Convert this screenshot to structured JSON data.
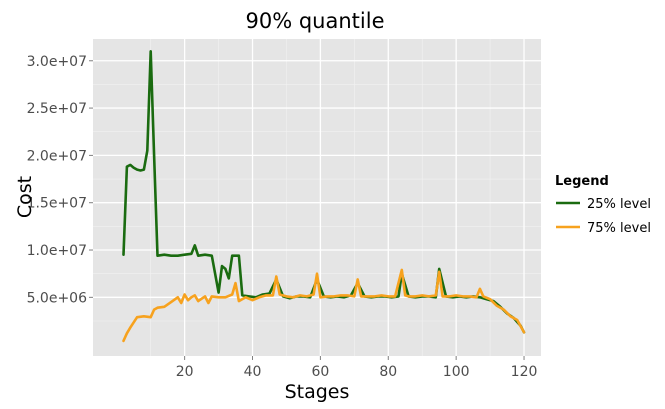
{
  "chart_data": {
    "type": "line",
    "title": "90% quantile",
    "xlabel": "Stages",
    "ylabel": "Cost",
    "xlim": [
      -7,
      125
    ],
    "ylim": [
      -1200000,
      32300000
    ],
    "xticks": [
      20,
      40,
      60,
      80,
      100,
      120
    ],
    "xtick_labels": [
      "20",
      "40",
      "60",
      "80",
      "100",
      "120"
    ],
    "yticks": [
      5000000,
      10000000,
      15000000,
      20000000,
      25000000,
      30000000
    ],
    "ytick_labels": [
      "5.0e+06",
      "1.0e+07",
      "1.5e+07",
      "2.0e+07",
      "2.5e+07",
      "3.0e+07"
    ],
    "grid": true,
    "legend_title": "Legend",
    "legend_position": "right",
    "series": [
      {
        "name": "25% level",
        "color": "#1a6b10",
        "x": [
          2,
          3,
          4,
          5,
          6,
          7,
          8,
          9,
          10,
          11,
          12,
          14,
          16,
          18,
          20,
          22,
          23,
          24,
          26,
          28,
          30,
          31,
          32,
          33,
          34,
          36,
          37,
          39,
          41,
          43,
          45,
          47,
          49,
          51,
          53,
          55,
          57,
          59,
          61,
          63,
          65,
          67,
          69,
          71,
          73,
          75,
          77,
          79,
          81,
          83,
          84,
          86,
          88,
          90,
          92,
          94,
          95,
          97,
          99,
          101,
          103,
          105,
          107,
          109,
          111,
          113,
          115,
          117,
          119,
          120
        ],
        "values": [
          9500000,
          18800000,
          19000000,
          18700000,
          18500000,
          18400000,
          18500000,
          20500000,
          31000000,
          20000000,
          9400000,
          9500000,
          9400000,
          9400000,
          9500000,
          9600000,
          10500000,
          9400000,
          9500000,
          9400000,
          5500000,
          8300000,
          8000000,
          7000000,
          9400000,
          9400000,
          5200000,
          5100000,
          5000000,
          5300000,
          5400000,
          6900000,
          5100000,
          4900000,
          5100000,
          5100000,
          5000000,
          6900000,
          5100000,
          5000000,
          5100000,
          5000000,
          5200000,
          6500000,
          5100000,
          5000000,
          5100000,
          5100000,
          5000000,
          5100000,
          7500000,
          5100000,
          5000000,
          5100000,
          5100000,
          5000000,
          8000000,
          5100000,
          5000000,
          5100000,
          5000000,
          5100000,
          5000000,
          4800000,
          4600000,
          4000000,
          3300000,
          2800000,
          2000000,
          1300000
        ]
      },
      {
        "name": "75% level",
        "color": "#f7a21e",
        "x": [
          2,
          3,
          4,
          6,
          8,
          10,
          11,
          12,
          14,
          16,
          18,
          19,
          20,
          21,
          22,
          23,
          24,
          26,
          27,
          28,
          30,
          32,
          34,
          35,
          36,
          38,
          40,
          42,
          44,
          46,
          47,
          48,
          50,
          52,
          54,
          56,
          58,
          59,
          60,
          62,
          64,
          66,
          68,
          70,
          71,
          72,
          74,
          76,
          78,
          80,
          82,
          84,
          85,
          86,
          88,
          90,
          92,
          94,
          95,
          96,
          98,
          100,
          102,
          104,
          106,
          107,
          108,
          110,
          112,
          114,
          116,
          118,
          120
        ],
        "values": [
          400000,
          1200000,
          1800000,
          2900000,
          3000000,
          2900000,
          3700000,
          3900000,
          4000000,
          4500000,
          5000000,
          4400000,
          5300000,
          4700000,
          5000000,
          5200000,
          4600000,
          5100000,
          4400000,
          5100000,
          5000000,
          5000000,
          5300000,
          6500000,
          4600000,
          5000000,
          4700000,
          5000000,
          5200000,
          5200000,
          7200000,
          5300000,
          5100000,
          5000000,
          5200000,
          5100000,
          5300000,
          7500000,
          5000000,
          5100000,
          5100000,
          5200000,
          5200000,
          5100000,
          6900000,
          5100000,
          5100000,
          5100000,
          5200000,
          5100000,
          5100000,
          7900000,
          5200000,
          5100000,
          5100000,
          5200000,
          5100000,
          5200000,
          7700000,
          5100000,
          5100000,
          5200000,
          5100000,
          5100000,
          5000000,
          5900000,
          5100000,
          4800000,
          4100000,
          3700000,
          3000000,
          2600000,
          1300000
        ]
      }
    ]
  }
}
